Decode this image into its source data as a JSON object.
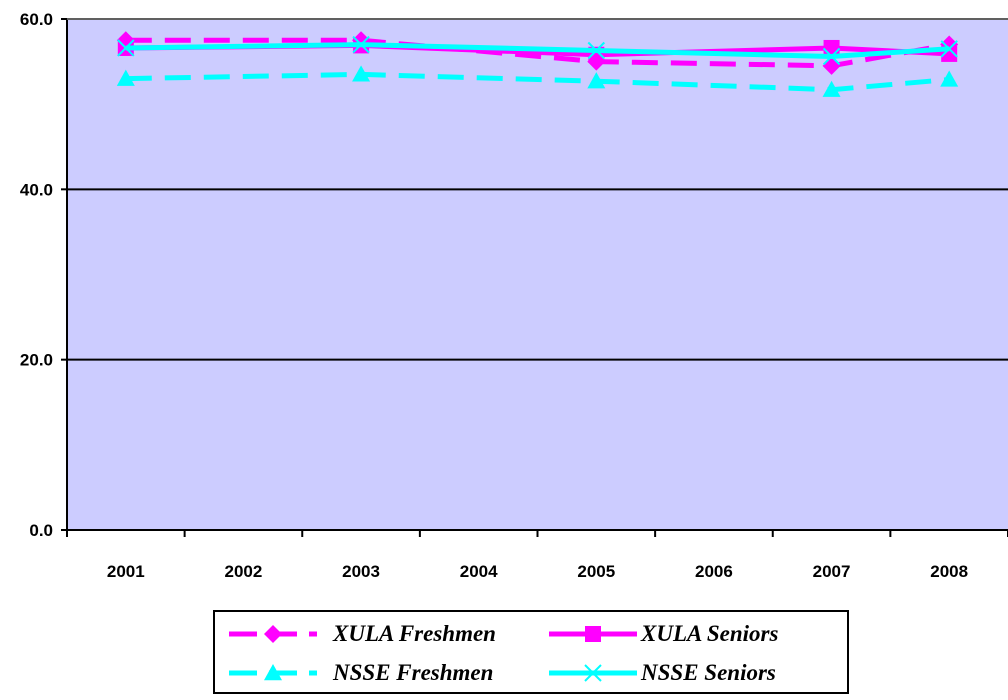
{
  "chart_data": {
    "type": "line",
    "x": [
      "2001",
      "2002",
      "2003",
      "2004",
      "2005",
      "2006",
      "2007",
      "2008"
    ],
    "ylim": [
      0,
      60
    ],
    "yticks": [
      "0.0",
      "20.0",
      "40.0",
      "60.0"
    ],
    "grid": true,
    "legend_position": "bottom",
    "plot_background": "#ccccff",
    "series": [
      {
        "name": "XULA Freshmen",
        "color": "#ff00ff",
        "dash": "dashed",
        "marker": "diamond",
        "values": [
          57.5,
          null,
          57.5,
          null,
          55.0,
          null,
          54.5,
          57.0
        ]
      },
      {
        "name": "XULA Seniors",
        "color": "#ff00ff",
        "dash": "solid",
        "marker": "square",
        "values": [
          56.6,
          null,
          56.9,
          null,
          55.8,
          null,
          56.6,
          55.9
        ]
      },
      {
        "name": "NSSE Freshmen",
        "color": "#00ffff",
        "dash": "dashed",
        "marker": "triangle",
        "values": [
          53.0,
          null,
          53.5,
          null,
          52.7,
          null,
          51.7,
          52.9
        ]
      },
      {
        "name": "NSSE Seniors",
        "color": "#00ffff",
        "dash": "solid",
        "marker": "x",
        "values": [
          56.6,
          null,
          57.0,
          null,
          56.3,
          null,
          55.6,
          56.5
        ]
      }
    ]
  }
}
